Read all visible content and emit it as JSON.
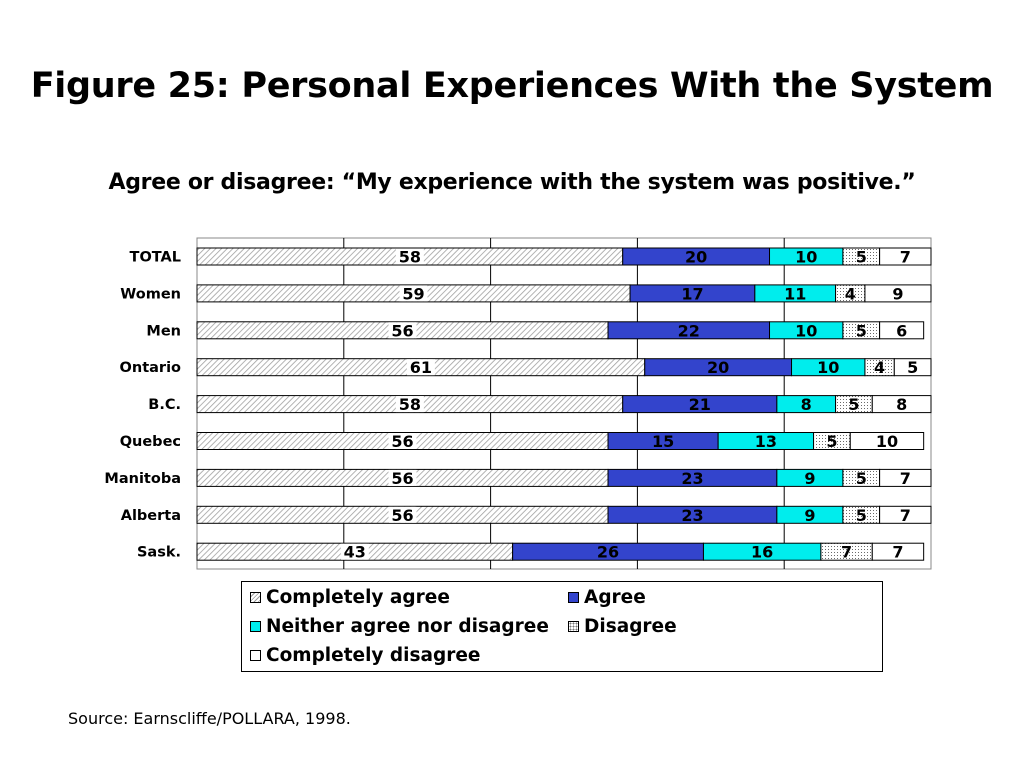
{
  "title": "Figure 25: Personal Experiences With the System",
  "subtitle": "Agree or disagree: “My experience with the system was positive.”",
  "source": "Source: Earnscliffe/POLLARA, 1998.",
  "chart_data": {
    "type": "bar",
    "orientation": "horizontal",
    "stacked": true,
    "title": "Figure 25: Personal Experiences With the System",
    "subtitle": "Agree or disagree: “My experience with the system was positive.”",
    "categories": [
      "TOTAL",
      "Women",
      "Men",
      "Ontario",
      "B.C.",
      "Quebec",
      "Manitoba",
      "Alberta",
      "Sask."
    ],
    "xlim": [
      0,
      100
    ],
    "grid": true,
    "legend_position": "bottom",
    "series": [
      {
        "name": "Completely agree",
        "color": "#c8c8c8",
        "fill": "diagonal-hatch",
        "values": [
          58,
          59,
          56,
          61,
          58,
          56,
          56,
          56,
          43
        ]
      },
      {
        "name": "Agree",
        "color": "#3344cc",
        "fill": "solid",
        "values": [
          20,
          17,
          22,
          20,
          21,
          15,
          23,
          23,
          26
        ]
      },
      {
        "name": "Neither agree nor disagree",
        "color": "#00eded",
        "fill": "solid",
        "values": [
          10,
          11,
          10,
          10,
          8,
          13,
          9,
          9,
          16
        ]
      },
      {
        "name": "Disagree",
        "color": "#dddddd",
        "fill": "dotted",
        "values": [
          5,
          4,
          5,
          4,
          5,
          5,
          5,
          5,
          7
        ]
      },
      {
        "name": "Completely disagree",
        "color": "#ffffff",
        "fill": "solid",
        "values": [
          7,
          9,
          6,
          5,
          8,
          10,
          7,
          7,
          7
        ]
      }
    ]
  }
}
